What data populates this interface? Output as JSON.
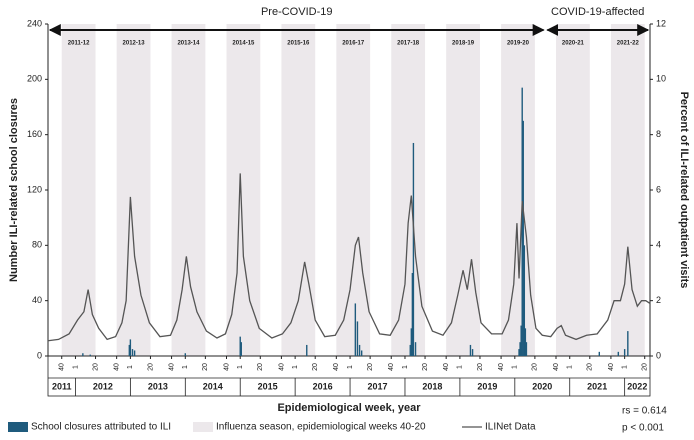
{
  "chart_data": {
    "type": "bar-line",
    "x_label": "Epidemiological week, year",
    "y_label": "Number ILI-related school closures",
    "y2_label": "Percent of ILI-related outpatient visits",
    "xlim": [
      0,
      570
    ],
    "ylim": [
      0,
      240
    ],
    "yticks": [
      0,
      40,
      80,
      120,
      160,
      200,
      240
    ],
    "y2lim": [
      0,
      12
    ],
    "y2ticks": [
      0,
      2,
      4,
      6,
      8,
      10,
      12
    ],
    "xticks": [
      {
        "value": 13,
        "label": "40"
      },
      {
        "value": 26,
        "label": "1"
      },
      {
        "value": 45,
        "label": "20"
      },
      {
        "value": 65,
        "label": "40"
      },
      {
        "value": 78,
        "label": "1"
      },
      {
        "value": 97,
        "label": "20"
      },
      {
        "value": 117,
        "label": "40"
      },
      {
        "value": 130,
        "label": "1"
      },
      {
        "value": 149,
        "label": "20"
      },
      {
        "value": 169,
        "label": "40"
      },
      {
        "value": 182,
        "label": "1"
      },
      {
        "value": 201,
        "label": "20"
      },
      {
        "value": 221,
        "label": "40"
      },
      {
        "value": 234,
        "label": "1"
      },
      {
        "value": 253,
        "label": "20"
      },
      {
        "value": 273,
        "label": "40"
      },
      {
        "value": 286,
        "label": "1"
      },
      {
        "value": 305,
        "label": "20"
      },
      {
        "value": 325,
        "label": "40"
      },
      {
        "value": 338,
        "label": "1"
      },
      {
        "value": 357,
        "label": "20"
      },
      {
        "value": 377,
        "label": "40"
      },
      {
        "value": 390,
        "label": "1"
      },
      {
        "value": 409,
        "label": "20"
      },
      {
        "value": 429,
        "label": "40"
      },
      {
        "value": 442,
        "label": "1"
      },
      {
        "value": 461,
        "label": "20"
      },
      {
        "value": 481,
        "label": "40"
      },
      {
        "value": 494,
        "label": "1"
      },
      {
        "value": 513,
        "label": "20"
      },
      {
        "value": 533,
        "label": "40"
      },
      {
        "value": 546,
        "label": "1"
      },
      {
        "value": 565,
        "label": "20"
      }
    ],
    "years": [
      "2011",
      "2012",
      "2013",
      "2014",
      "2015",
      "2016",
      "2017",
      "2018",
      "2019",
      "2020",
      "2021",
      "2022"
    ],
    "periods": [
      {
        "label": "Pre-COVID-19",
        "seasons": [
          "2011-12",
          "2012-13",
          "2013-14",
          "2014-15",
          "2015-16",
          "2016-17",
          "2017-18",
          "2018-19",
          "2019-20"
        ]
      },
      {
        "label": "COVID-19-affected",
        "seasons": [
          "2020-21",
          "2021-22"
        ]
      }
    ],
    "season_shading": {
      "name": "Influenza season, epidemiological weeks 40-20",
      "color": "#ece8eb"
    },
    "series": [
      {
        "name": "School closures attributed to ILI",
        "type": "bar",
        "color": "#1f5b7d",
        "x": [
          33,
          40,
          77,
          78,
          80,
          82,
          130,
          182,
          183,
          245,
          291,
          293,
          295,
          297,
          343,
          344,
          345,
          346,
          348,
          400,
          402,
          446,
          447,
          448,
          449,
          450,
          451,
          452,
          453,
          522,
          540,
          546,
          549
        ],
        "values": [
          2,
          1,
          8,
          12,
          5,
          4,
          2,
          14,
          10,
          8,
          38,
          25,
          8,
          4,
          8,
          20,
          60,
          154,
          10,
          8,
          5,
          5,
          10,
          22,
          194,
          170,
          80,
          20,
          10,
          3,
          3,
          5,
          18
        ]
      },
      {
        "name": "ILINet Data",
        "type": "line",
        "axis": "y2",
        "color": "#555555",
        "x": [
          0,
          10,
          20,
          28,
          34,
          38,
          42,
          48,
          56,
          64,
          70,
          74,
          78,
          82,
          88,
          96,
          106,
          116,
          122,
          127,
          131,
          135,
          141,
          150,
          160,
          168,
          174,
          179,
          182,
          185,
          191,
          200,
          212,
          222,
          230,
          237,
          243,
          247,
          253,
          262,
          272,
          280,
          286,
          291,
          294,
          298,
          304,
          314,
          324,
          332,
          338,
          341,
          344,
          348,
          354,
          364,
          374,
          382,
          388,
          393,
          397,
          401,
          405,
          410,
          420,
          430,
          436,
          441,
          444,
          446,
          449,
          453,
          457,
          462,
          468,
          476,
          482,
          486,
          490,
          500,
          510,
          520,
          530,
          536,
          542,
          546,
          549,
          553,
          558,
          562,
          566,
          570
        ],
        "values": [
          0.55,
          0.6,
          0.8,
          1.3,
          1.6,
          2.4,
          1.5,
          1.0,
          0.6,
          0.7,
          1.2,
          2.0,
          5.75,
          3.6,
          2.2,
          1.2,
          0.7,
          0.75,
          1.3,
          2.4,
          3.6,
          2.5,
          1.6,
          0.9,
          0.65,
          0.8,
          1.5,
          3.0,
          6.6,
          3.6,
          2.0,
          1.0,
          0.65,
          0.8,
          1.2,
          2.0,
          3.4,
          2.6,
          1.3,
          0.7,
          0.75,
          1.3,
          2.4,
          4.0,
          4.3,
          3.0,
          1.6,
          0.8,
          0.75,
          1.3,
          2.6,
          4.8,
          5.8,
          3.6,
          1.8,
          0.9,
          0.75,
          1.2,
          2.2,
          3.1,
          2.4,
          3.5,
          2.3,
          1.2,
          0.8,
          0.8,
          1.3,
          2.6,
          4.8,
          2.8,
          5.6,
          4.3,
          2.2,
          1.0,
          0.75,
          0.7,
          1.0,
          1.1,
          0.75,
          0.6,
          0.75,
          0.8,
          1.3,
          2.0,
          2.0,
          2.6,
          3.95,
          2.4,
          1.8,
          2.0,
          2.0,
          1.9
        ]
      }
    ],
    "annotations": [
      "rs = 0.614",
      "p < 0.001"
    ]
  }
}
